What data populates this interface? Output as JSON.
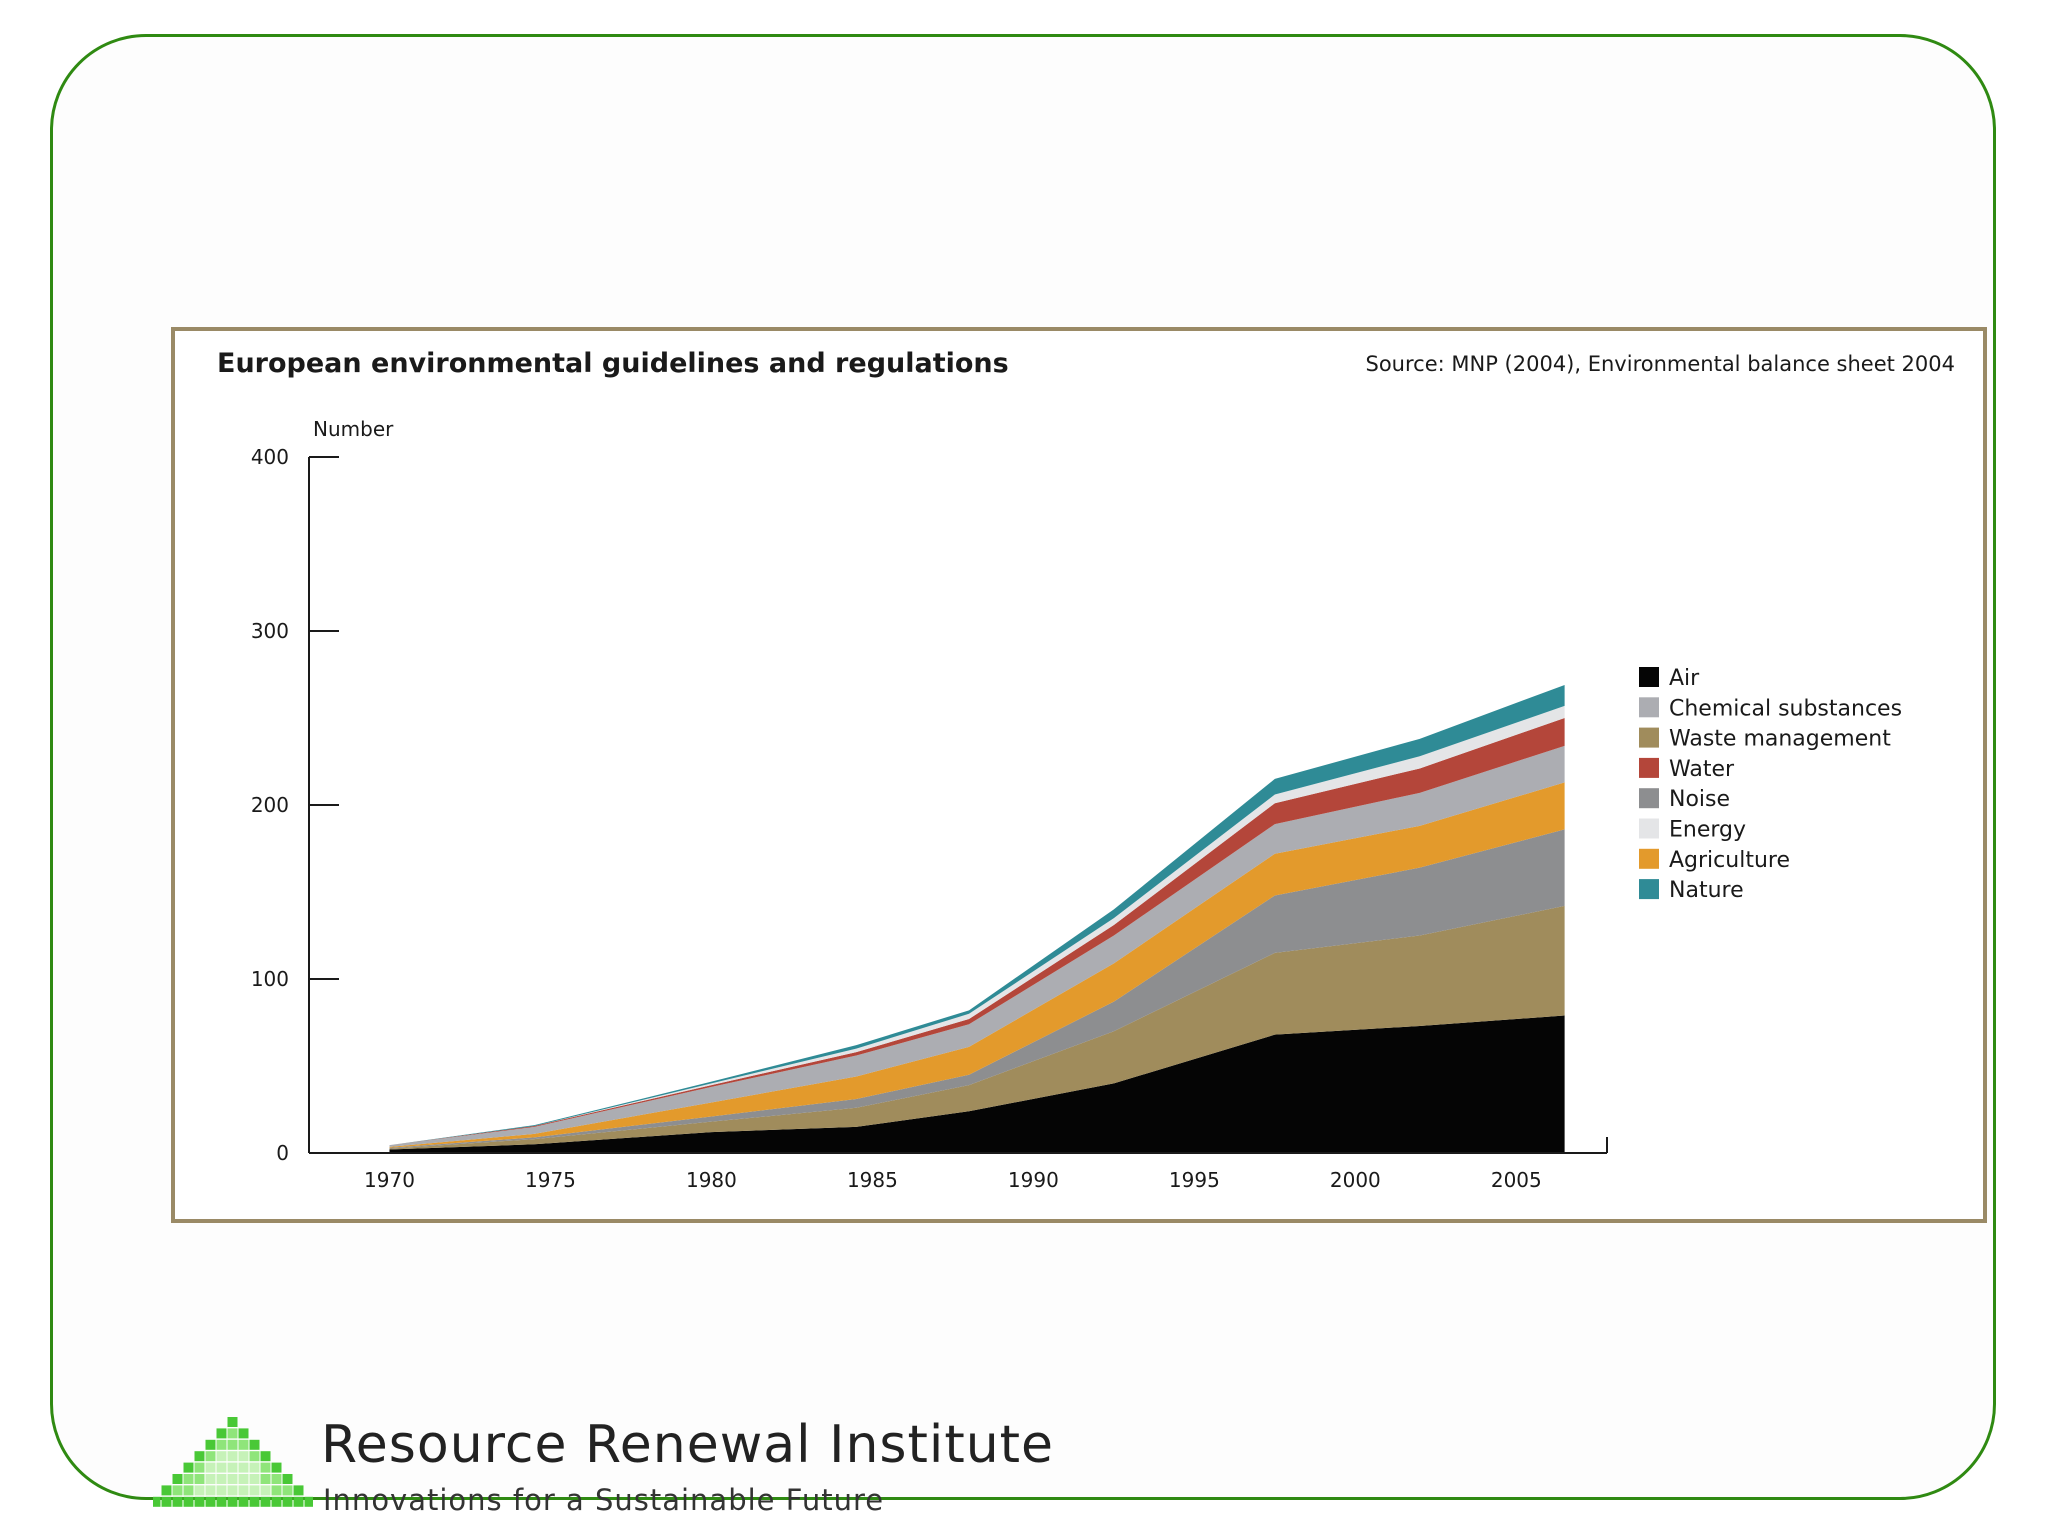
{
  "chart_data": {
    "type": "area",
    "stacked": true,
    "title": "European environmental guidelines and regulations",
    "source": "Source: MNP (2004), Environmental balance sheet 2004",
    "ylabel": "Number",
    "xlabel": "",
    "ylim": [
      0,
      400
    ],
    "xlim": [
      1967.5,
      2008.5
    ],
    "yticks": [
      0,
      100,
      200,
      300,
      400
    ],
    "xticks": [
      1970,
      1975,
      1980,
      1985,
      1990,
      1995,
      2000,
      2005
    ],
    "x": [
      1970,
      1974.5,
      1980,
      1984.5,
      1988,
      1992.5,
      1997.5,
      2002,
      2006.5
    ],
    "series": [
      {
        "name": "Air",
        "color": "#050505",
        "values": [
          2,
          5,
          12,
          15,
          24,
          40,
          68,
          73,
          79
        ]
      },
      {
        "name": "Waste management",
        "color": "#a08c5c",
        "values": [
          0.5,
          3,
          6,
          11,
          15,
          30,
          47,
          52,
          63
        ]
      },
      {
        "name": "Noise",
        "color": "#8d8e90",
        "values": [
          0.5,
          1,
          3,
          5,
          6,
          17,
          33,
          39,
          44
        ]
      },
      {
        "name": "Agriculture",
        "color": "#e39a2c",
        "values": [
          0.5,
          2,
          8,
          13,
          16,
          22,
          24,
          24,
          27
        ]
      },
      {
        "name": "Chemical substances",
        "color": "#acadb2",
        "values": [
          1,
          4,
          9,
          12,
          13,
          16,
          17,
          19,
          21
        ]
      },
      {
        "name": "Water",
        "color": "#b4463a",
        "values": [
          0,
          0.5,
          1,
          2,
          3,
          6,
          12,
          14,
          16
        ]
      },
      {
        "name": "Energy",
        "color": "#e4e5e7",
        "values": [
          0,
          0,
          1,
          2,
          3,
          4,
          5,
          7,
          7
        ]
      },
      {
        "name": "Nature",
        "color": "#2f8b96",
        "values": [
          0,
          0.5,
          1,
          2,
          2,
          5,
          9,
          10,
          12
        ]
      }
    ],
    "legend_order": [
      "Air",
      "Chemical substances",
      "Waste management",
      "Water",
      "Noise",
      "Energy",
      "Agriculture",
      "Nature"
    ],
    "legend_position": "right"
  },
  "footer": {
    "org_name": "Resource Renewal Institute",
    "tagline": "Innovations for a Sustainable Future"
  },
  "colors": {
    "slide_border": "#2f8a12",
    "chart_frame": "#9a8a66",
    "logo_green": "#62d94a"
  }
}
